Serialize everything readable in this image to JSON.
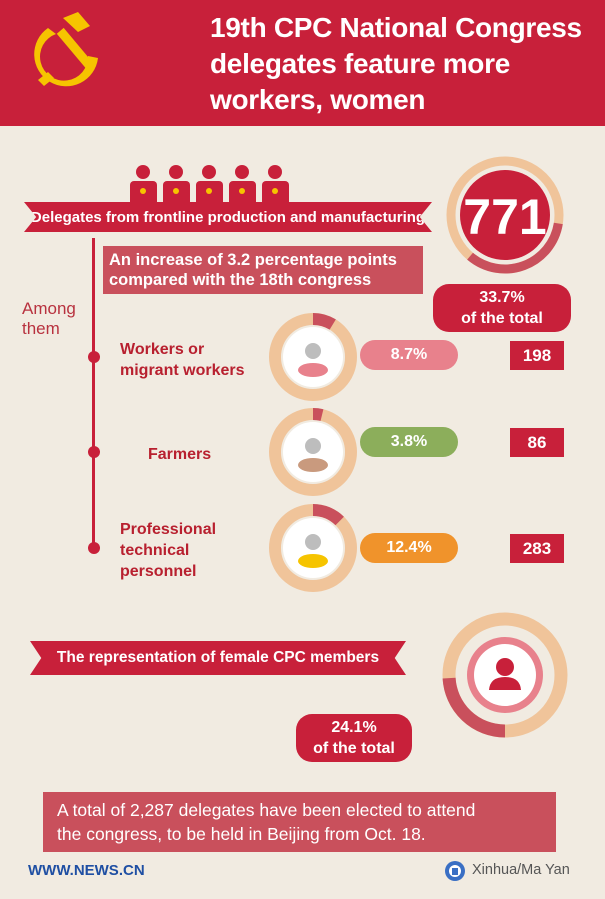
{
  "header": {
    "title_lines": [
      "19th CPC National Congress",
      "delegates feature more",
      "workers, women"
    ]
  },
  "frontline": {
    "ribbon": "Delegates from frontline production and manufacturing",
    "count": "771",
    "share": "33.7%",
    "share_suffix": "of the total",
    "increase_lines": [
      "An increase of 3.2 percentage points",
      "compared with the 18th congress"
    ],
    "among_lines": [
      "Among",
      "them"
    ]
  },
  "groups": [
    {
      "label_lines": [
        "Workers or",
        "migrant workers"
      ],
      "percent": "8.7%",
      "count": "198",
      "pill_color": "#e8818c",
      "person_color": "#e8818c"
    },
    {
      "label_lines": [
        "Farmers"
      ],
      "percent": "3.8%",
      "count": "86",
      "pill_color": "#8cae5b",
      "person_color": "#c99a7e"
    },
    {
      "label_lines": [
        "Professional",
        "technical",
        "personnel"
      ],
      "percent": "12.4%",
      "count": "283",
      "pill_color": "#f0932b",
      "person_color": "#f6c400"
    }
  ],
  "female": {
    "ribbon": "The representation of female CPC members",
    "share": "24.1%",
    "share_suffix": "of the total"
  },
  "note_lines": [
    "A total of 2,287 delegates have been elected to attend",
    "the congress, to be held in Beijing from Oct. 18."
  ],
  "footer": {
    "site": "WWW.NEWS.CN",
    "credit": "Xinhua/Ma Yan"
  },
  "colors": {
    "red": "#c8203a",
    "ring": "#f0c49a",
    "ring_accent": "#c9505c",
    "background": "#f1ebe1"
  },
  "chart_data": [
    {
      "type": "pie",
      "title": "Delegates from frontline production and manufacturing",
      "values": [
        33.7,
        66.3
      ],
      "unit": "%",
      "center_label": "771"
    },
    {
      "type": "pie",
      "title": "Workers or migrant workers",
      "values": [
        8.7,
        91.3
      ],
      "unit": "%"
    },
    {
      "type": "pie",
      "title": "Farmers",
      "values": [
        3.8,
        96.2
      ],
      "unit": "%"
    },
    {
      "type": "pie",
      "title": "Professional technical personnel",
      "values": [
        12.4,
        87.6
      ],
      "unit": "%"
    },
    {
      "type": "pie",
      "title": "The representation of female CPC members",
      "values": [
        24.1,
        75.9
      ],
      "unit": "%"
    }
  ]
}
